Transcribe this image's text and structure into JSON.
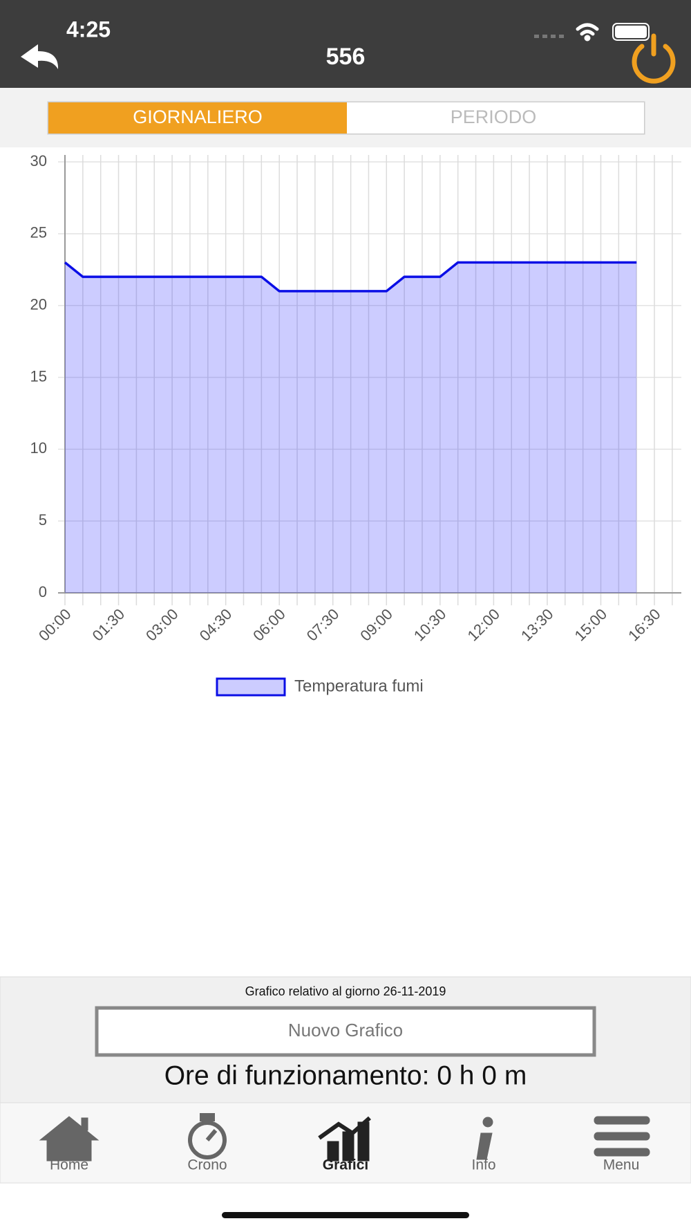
{
  "status_bar": {
    "time": "4:25"
  },
  "header": {
    "title": "556"
  },
  "tabs": {
    "items": [
      "GIORNALIERO",
      "PERIODO"
    ],
    "active": 0
  },
  "chart_data": {
    "type": "line",
    "categories": [
      "00:00",
      null,
      null,
      "01:30",
      null,
      null,
      "03:00",
      null,
      null,
      "04:30",
      null,
      null,
      "06:00",
      null,
      null,
      "07:30",
      null,
      null,
      "09:00",
      null,
      null,
      "10:30",
      null,
      null,
      "12:00",
      null,
      null,
      "13:30",
      null,
      null,
      "15:00",
      null,
      null,
      "16:30",
      null
    ],
    "series": [
      {
        "name": "Temperatura fumi",
        "color": "#0a0ee6",
        "fill": "rgba(40,40,255,0.24)",
        "values": [
          23,
          22,
          22,
          22,
          22,
          22,
          22,
          22,
          22,
          22,
          22,
          22,
          21,
          21,
          21,
          21,
          21,
          21,
          21,
          22,
          22,
          22,
          23,
          23,
          23,
          23,
          23,
          23,
          23,
          23,
          23,
          23,
          23,
          null,
          null
        ]
      }
    ],
    "ylim": [
      0,
      30
    ],
    "yticks": [
      0,
      5,
      10,
      15,
      20,
      25,
      30
    ],
    "grid": true,
    "legend": "bottom"
  },
  "footer": {
    "date_note": "Grafico relativo al giorno 26-11-2019",
    "button": "Nuovo Grafico",
    "hours": "Ore di funzionamento: 0 h 0 m"
  },
  "nav": {
    "items": [
      "Home",
      "Crono",
      "Grafici",
      "Info",
      "Menu"
    ],
    "active": 2
  }
}
